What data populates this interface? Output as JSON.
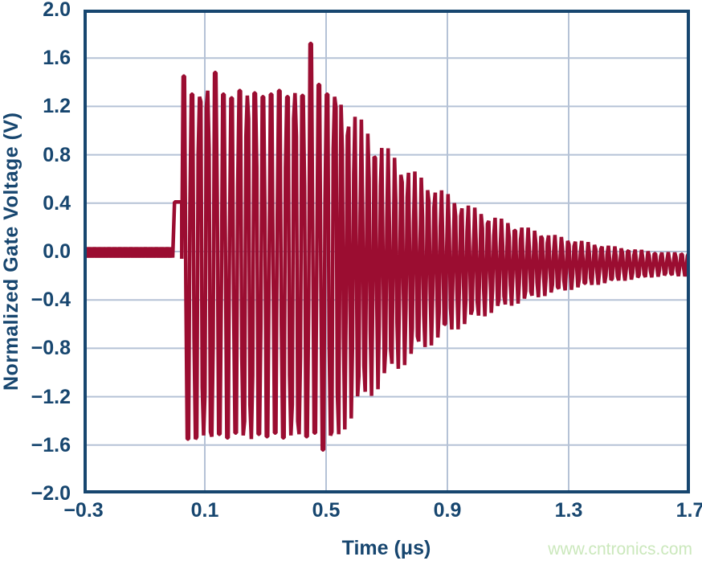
{
  "watermark": {
    "text": "www.cntronics.com"
  },
  "colors": {
    "axis_text": "#17466F",
    "plot_border": "#17466F",
    "waveform_line": "#9B0D31",
    "grid_line": "#B5C2D6",
    "watermark_text": "#CBE8BC",
    "background": "#FFFFFF"
  },
  "chart_data": {
    "type": "line",
    "title": "",
    "xlabel": "Time (μs)",
    "ylabel": "Normalized Gate Voltage (V)",
    "xlim": [
      -0.3,
      1.7
    ],
    "ylim": [
      -2.0,
      2.0
    ],
    "x_ticks": [
      -0.3,
      0.1,
      0.5,
      0.9,
      1.3,
      1.7
    ],
    "y_ticks": [
      2.0,
      1.6,
      1.2,
      0.8,
      0.4,
      0.0,
      -0.4,
      -0.8,
      -1.2,
      -1.6,
      -2.0
    ],
    "grid": true,
    "legend": false,
    "series_name": "normalized gate voltage burst",
    "signal": {
      "description": "Flat baseline near 0 V, small pre-step to ~0.4 V at t=0, clipped oscillation burst of ~38 MHz between ~+1.3 V and ~-1.5 V from t=0.024 to t=0.545 us (isolated peaks +1.45, +1.48, +1.72 and dip -1.64), then exponentially decaying ~46 MHz ring-down settling to ~-0.1 V by t=1.7 us",
      "baseline": {
        "t_start": -0.3,
        "t_end": 0.0,
        "high": 0.035,
        "low": -0.05,
        "step": 0.006
      },
      "pre_step": {
        "t_start": 0.0,
        "t_end": 0.024,
        "level": 0.41
      },
      "burst": {
        "t_start": 0.024,
        "t_end": 0.545,
        "period": 0.0262,
        "sample_dt": 0.0045,
        "amplitude": 2.3,
        "center": -0.06,
        "cycle_tops": [
          1.45,
          1.3,
          1.28,
          1.33,
          1.48,
          1.3,
          1.27,
          1.33,
          1.29,
          1.31,
          1.28,
          1.3,
          1.33,
          1.28,
          1.31,
          1.29,
          1.72,
          1.38,
          1.3,
          1.28
        ],
        "cycle_bottoms": [
          -1.55,
          -1.55,
          -1.52,
          -1.53,
          -1.51,
          -1.54,
          -1.5,
          -1.52,
          -1.55,
          -1.51,
          -1.53,
          -1.5,
          -1.54,
          -1.52,
          -1.51,
          -1.53,
          -1.5,
          -1.64,
          -1.52,
          -1.51
        ]
      },
      "decay": {
        "t_start": 0.545,
        "t_end": 1.7,
        "period": 0.022,
        "sample_dt": 0.0042,
        "a0": 1.43,
        "tau": 0.4,
        "floor": 0.1,
        "center": -0.105
      }
    }
  }
}
